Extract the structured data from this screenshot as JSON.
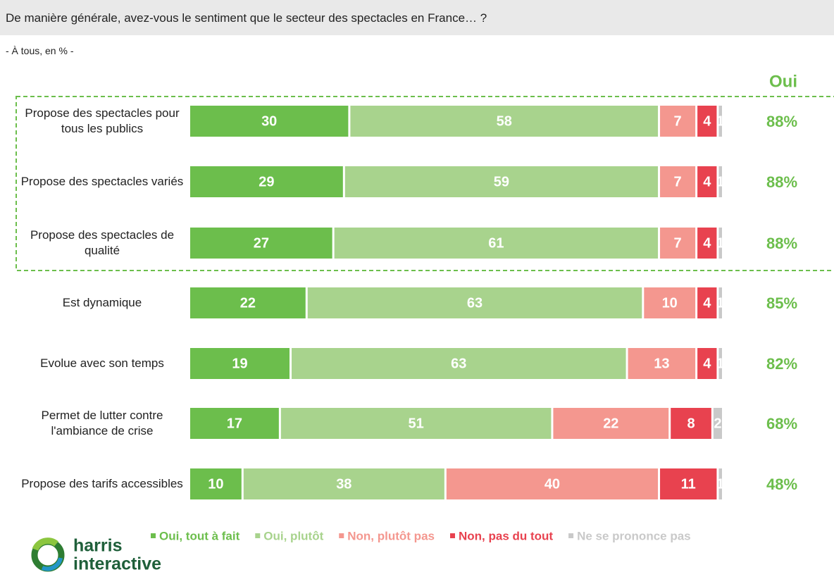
{
  "title": "De manière générale, avez-vous le sentiment que le secteur des spectacles en France… ?",
  "subtitle": "- À tous, en % -",
  "logo": {
    "line1": "harris",
    "line2": "interactive"
  },
  "chart_data": {
    "type": "stacked_bar_horizontal",
    "categories": [
      "Propose des spectacles pour tous les publics",
      "Propose des spectacles variés",
      "Propose des spectacles de qualité",
      "Est dynamique",
      "Evolue avec son temps",
      "Permet de lutter contre l'ambiance de crise",
      "Propose des tarifs accessibles"
    ],
    "xlim": [
      0,
      100
    ],
    "series": [
      {
        "name": "Oui, tout à fait",
        "color": "#6cbe4c",
        "values": [
          30,
          29,
          27,
          22,
          19,
          17,
          10
        ]
      },
      {
        "name": "Oui, plutôt",
        "color": "#a8d38d",
        "values": [
          58,
          59,
          61,
          63,
          63,
          51,
          38
        ]
      },
      {
        "name": "Non, plutôt pas",
        "color": "#f4978f",
        "values": [
          7,
          7,
          7,
          10,
          13,
          22,
          40
        ]
      },
      {
        "name": "Non, pas du tout",
        "color": "#e8424f",
        "values": [
          4,
          4,
          4,
          4,
          4,
          8,
          11
        ]
      },
      {
        "name": "Ne se prononce pas",
        "color": "#c9c9c9",
        "values": [
          1,
          1,
          1,
          1,
          1,
          2,
          1
        ]
      }
    ],
    "totals": {
      "title": "Oui",
      "color": "#6cbe4c",
      "values": [
        88,
        88,
        88,
        85,
        82,
        68,
        48
      ],
      "value_labels": [
        "88%",
        "88%",
        "88%",
        "85%",
        "82%",
        "68%",
        "48%"
      ]
    }
  }
}
